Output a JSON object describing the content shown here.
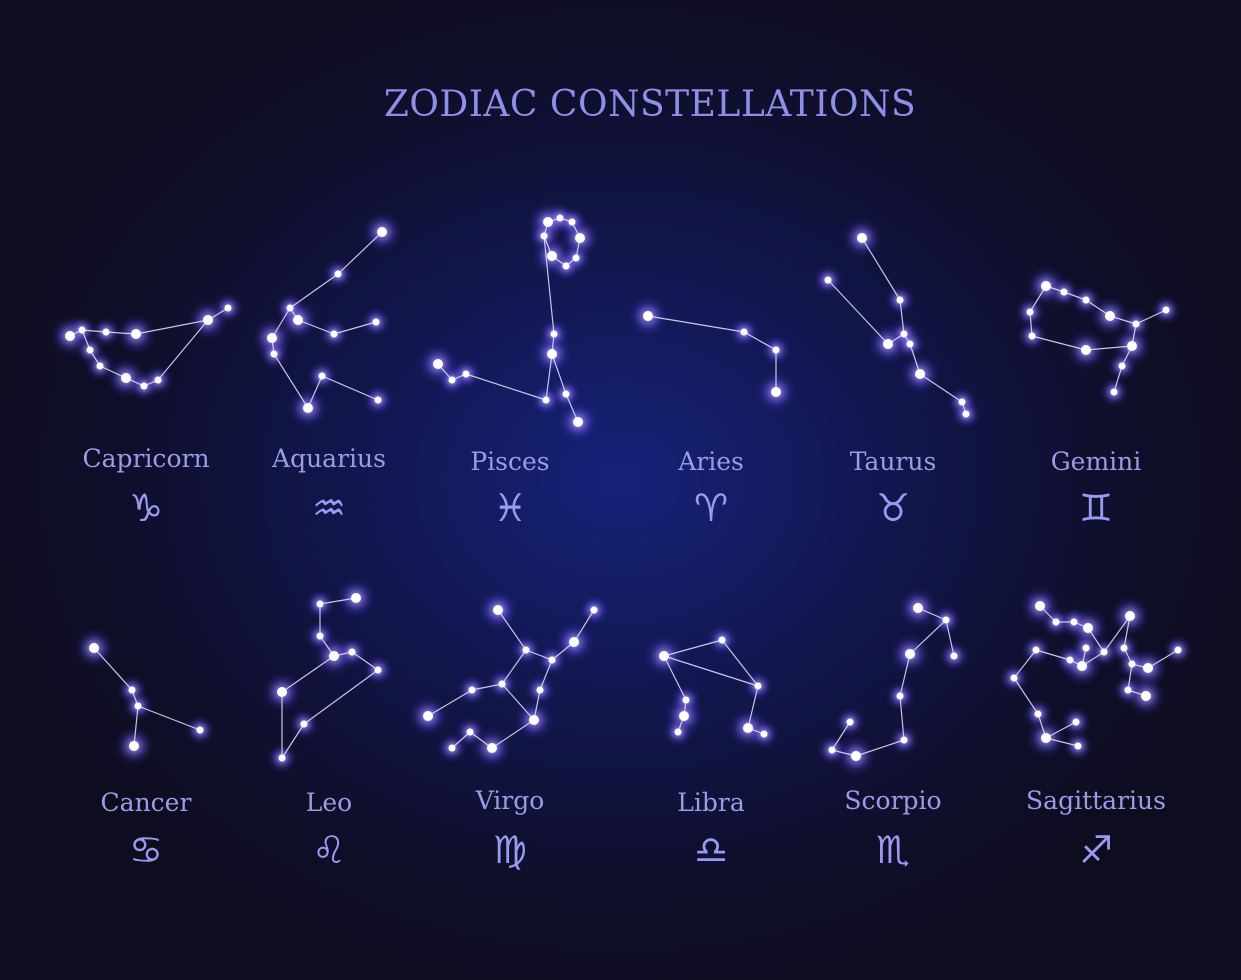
{
  "title": "ZODIAC CONSTELLATIONS",
  "colors": {
    "background": "#121744",
    "star_core": "#ffffff",
    "star_glow": "#8a7dff",
    "line": "#e6e6ff",
    "text": "#9c9ce6"
  },
  "signs": [
    {
      "name": "Capricorn",
      "symbol": "♑",
      "icon": "capricorn-symbol-icon"
    },
    {
      "name": "Aquarius",
      "symbol": "♒",
      "icon": "aquarius-symbol-icon"
    },
    {
      "name": "Pisces",
      "symbol": "♓",
      "icon": "pisces-symbol-icon"
    },
    {
      "name": "Aries",
      "symbol": "♈",
      "icon": "aries-symbol-icon"
    },
    {
      "name": "Taurus",
      "symbol": "♉",
      "icon": "taurus-symbol-icon"
    },
    {
      "name": "Gemini",
      "symbol": "♊",
      "icon": "gemini-symbol-icon"
    },
    {
      "name": "Cancer",
      "symbol": "♋",
      "icon": "cancer-symbol-icon"
    },
    {
      "name": "Leo",
      "symbol": "♌",
      "icon": "leo-symbol-icon"
    },
    {
      "name": "Virgo",
      "symbol": "♍",
      "icon": "virgo-symbol-icon"
    },
    {
      "name": "Libra",
      "symbol": "♎",
      "icon": "libra-symbol-icon"
    },
    {
      "name": "Scorpio",
      "symbol": "♏",
      "icon": "scorpio-symbol-icon"
    },
    {
      "name": "Sagittarius",
      "symbol": "♐",
      "icon": "sagittarius-symbol-icon"
    }
  ]
}
